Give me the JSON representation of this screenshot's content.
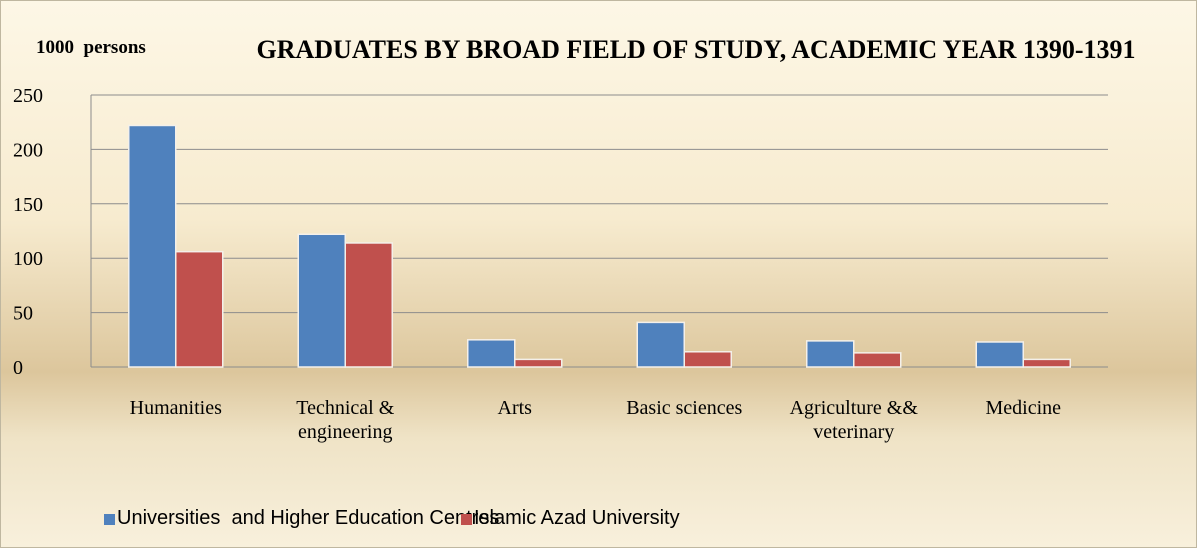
{
  "chart_data": {
    "type": "bar",
    "title": "GRADUATES BY BROAD FIELD OF STUDY, ACADEMIC YEAR 1390-1391",
    "y_label": "1000  persons",
    "categories": [
      "Humanities",
      "Technical & engineering",
      "Arts",
      "Basic sciences",
      "Agriculture && veterinary",
      "Medicine"
    ],
    "series": [
      {
        "name": "Universities  and Higher Education Centres",
        "color": "#4f81bd",
        "values": [
          222,
          122,
          25,
          41,
          24,
          23
        ]
      },
      {
        "name": "Islamic Azad University",
        "color": "#c0504d",
        "values": [
          106,
          114,
          7,
          14,
          13,
          7
        ]
      }
    ],
    "ylim": [
      0,
      250
    ],
    "yticks": [
      0,
      50,
      100,
      150,
      200,
      250
    ],
    "grid": true,
    "legend": "bottom"
  }
}
